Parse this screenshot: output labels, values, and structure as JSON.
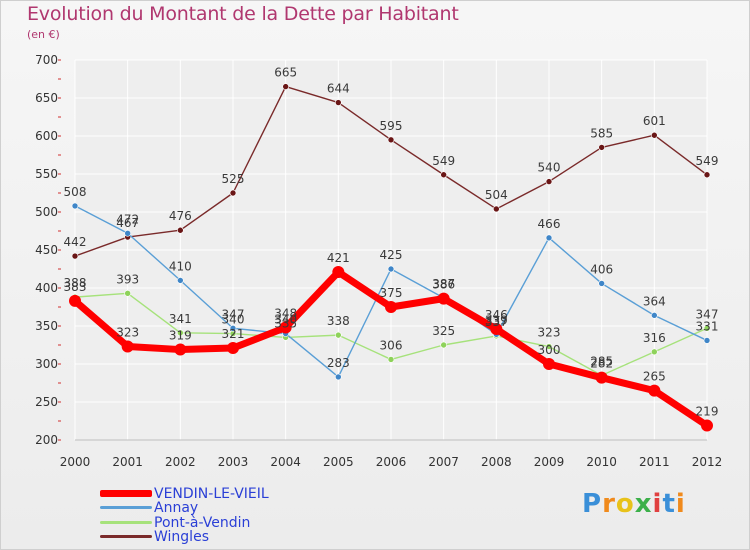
{
  "title": "Evolution du Montant de la Dette par Habitant",
  "unit_label": "(en €)",
  "brand": "Proxiti",
  "colors": {
    "title": "#b0376f",
    "legend_text": "#2a3fd6",
    "grid": "#ffffff",
    "tick_mark": "#d03030"
  },
  "legend": [
    {
      "name": "VENDIN-LE-VIEIL",
      "color": "#ff0000",
      "thickness": 7
    },
    {
      "name": "Annay",
      "color": "#5a9fd6",
      "thickness": 3
    },
    {
      "name": "Pont-à-Vendin",
      "color": "#a6e27b",
      "thickness": 3
    },
    {
      "name": "Wingles",
      "color": "#7a2a2a",
      "thickness": 3
    }
  ],
  "chart_data": {
    "type": "line",
    "title": "Evolution du Montant de la Dette par Habitant",
    "xlabel": "",
    "ylabel": "(en €)",
    "x": [
      2000,
      2001,
      2002,
      2003,
      2004,
      2005,
      2006,
      2007,
      2008,
      2009,
      2010,
      2011,
      2012
    ],
    "ylim": [
      200,
      700
    ],
    "yticks": [
      200,
      250,
      300,
      350,
      400,
      450,
      500,
      550,
      600,
      650,
      700
    ],
    "grid": true,
    "legend_position": "bottom-left",
    "series": [
      {
        "name": "Wingles",
        "color": "#7a2a2a",
        "width": 1.4,
        "marker": "#6a1616",
        "values": [
          442,
          467,
          476,
          525,
          665,
          644,
          595,
          549,
          504,
          540,
          585,
          601,
          549
        ]
      },
      {
        "name": "Pont-à-Vendin",
        "color": "#a6e27b",
        "width": 1.4,
        "marker": "#8ed25a",
        "values": [
          388,
          393,
          341,
          340,
          335,
          338,
          306,
          325,
          337,
          323,
          285,
          316,
          347
        ]
      },
      {
        "name": "Annay",
        "color": "#5a9fd6",
        "width": 1.4,
        "marker": "#3f86c8",
        "values": [
          508,
          472,
          410,
          347,
          340,
          283,
          425,
          387,
          339,
          466,
          406,
          364,
          331
        ]
      },
      {
        "name": "VENDIN-LE-VIEIL",
        "color": "#ff0000",
        "width": 7,
        "marker": "#ff0000",
        "values": [
          383,
          323,
          319,
          321,
          348,
          421,
          375,
          386,
          346,
          300,
          282,
          265,
          219
        ]
      }
    ]
  }
}
